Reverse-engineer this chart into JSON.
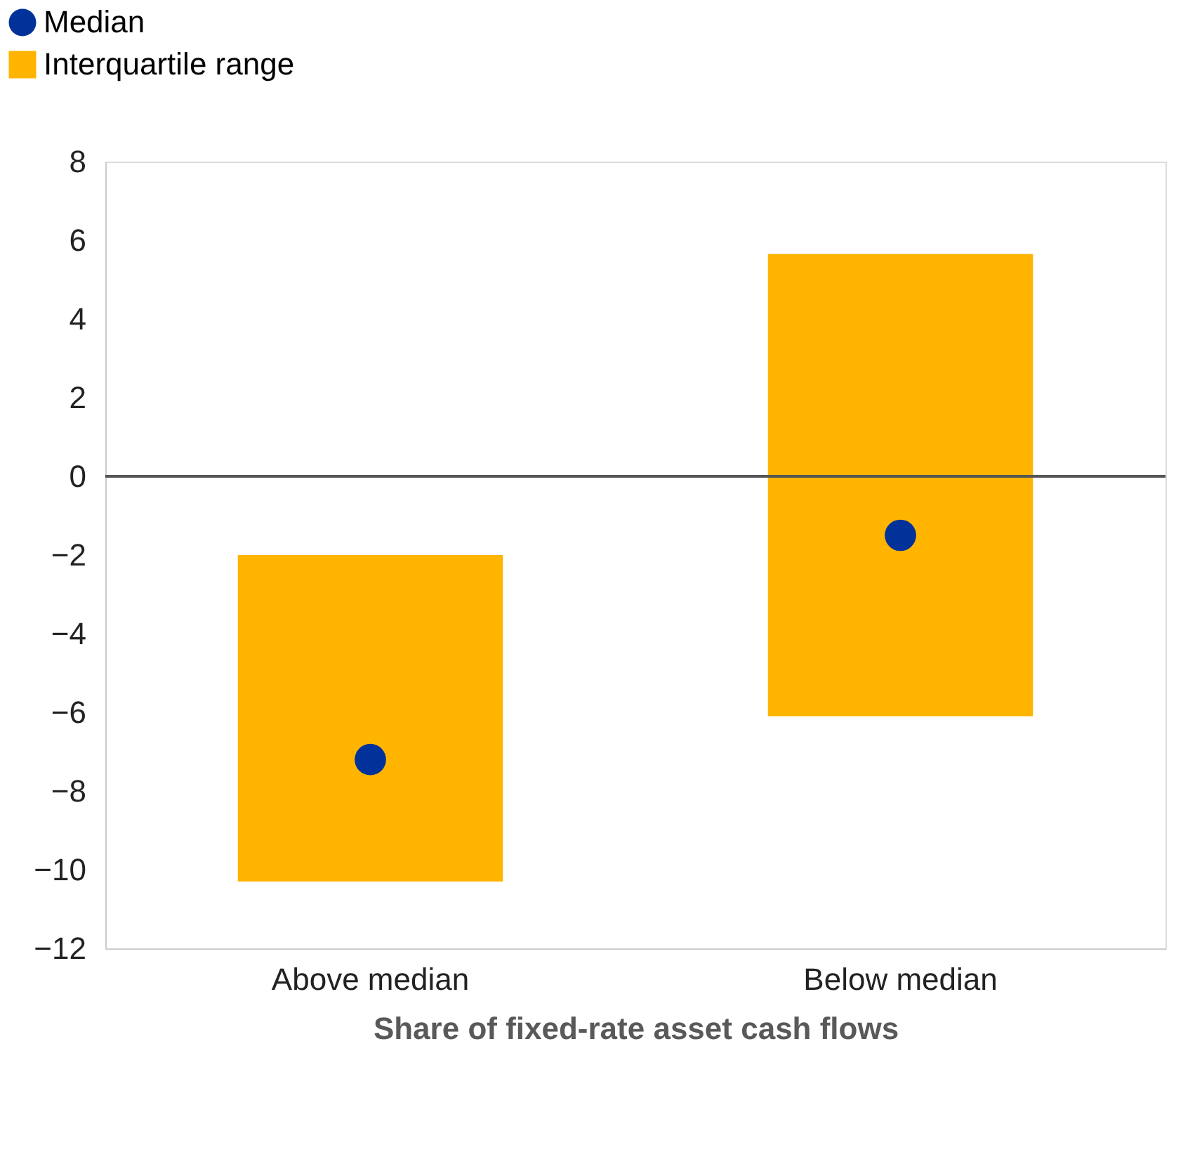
{
  "chart_data": {
    "type": "bar",
    "categories": [
      "Above median",
      "Below median"
    ],
    "xlabel": "Share of fixed-rate asset cash flows",
    "series": [
      {
        "name": "Median",
        "type": "scatter",
        "color": "#003299",
        "values": [
          -7.2,
          -1.5
        ]
      },
      {
        "name": "Interquartile range",
        "color": "#ffb400",
        "base": [
          -10.3,
          -6.1
        ],
        "values": [
          8.3,
          11.75
        ]
      }
    ],
    "ylim": [
      -12,
      8
    ],
    "yticks": [
      -12,
      -10,
      -8,
      -6,
      -4,
      -2,
      0,
      2,
      4,
      6,
      8
    ],
    "legend": "top left",
    "marker": "circle",
    "ref_lines": [
      {
        "axis": "y",
        "value": 0,
        "color": "#555555"
      }
    ]
  }
}
